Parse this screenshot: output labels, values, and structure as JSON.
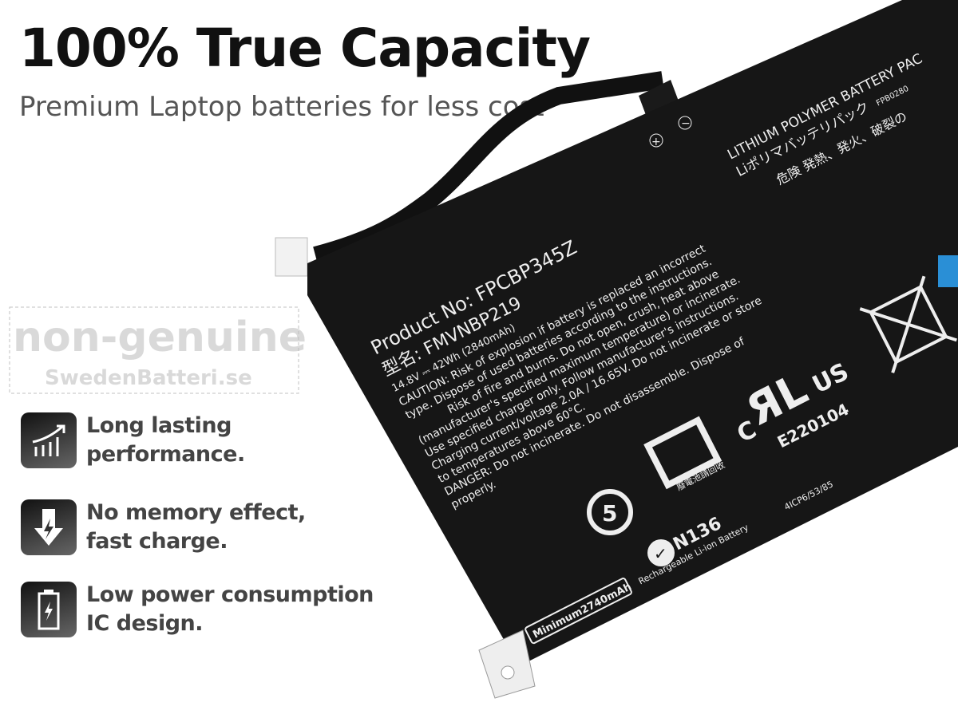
{
  "header": {
    "title": "100% True Capacity",
    "subtitle": "Premium Laptop batteries for less cost"
  },
  "features": [
    {
      "icon": "rising-chart-icon",
      "line1": "Long lasting",
      "line2": "performance."
    },
    {
      "icon": "down-arrow-lightning-icon",
      "line1": "No memory effect,",
      "line2": "fast charge."
    },
    {
      "icon": "battery-charge-icon",
      "line1": "Low power consumption",
      "line2": "IC design."
    }
  ],
  "battery_label": {
    "header1": "LITHIUM POLYMER BATTERY PAC",
    "header2": "Liポリマバッテリパック",
    "header_code": "FPB0280",
    "danger_jp": "危険  発熱、発火、破裂の",
    "product_no": "Product  No: FPCBP345Z",
    "model": "型名: FMVNBP219",
    "rating": "14.8V ⎓ 42Wh (2840mAh)",
    "caution_lines": [
      "CAUTION: Risk of explosion if battery is replaced an incorrect",
      "type. Dispose of used batteries according to the instructions.",
      "Risk of fire and burns. Do not open, crush, heat above",
      "(manufacturer's specified maximum temperature) or incinerate.",
      "Use specified charger only. Follow manufacturer's instructions.",
      "Charging current/voltage 2.0A / 16.65V. Do not incinerate or store",
      "to temperatures above 60°C.",
      "DANGER: Do not incinerate. Do not disassemble. Dispose of",
      "properly."
    ],
    "ul_cert": "E220104",
    "ul_c": "C",
    "ul_us": "US",
    "recycle_jp": "廢電池請回收",
    "recycle_number": "5",
    "ctick": "N136",
    "minimum": "Minimum2740mAh",
    "rechargeable": "Rechargeable Li-ion Battery",
    "cell_code": "4ICP6/53/85",
    "plus": "+",
    "minus": "−"
  },
  "watermark": {
    "line1": "non-genuine",
    "line2": "SwedenBatteri.se"
  },
  "colors": {
    "battery_body": "#161616",
    "title": "#111111",
    "subtitle": "#555555",
    "feature_text": "#444444"
  }
}
